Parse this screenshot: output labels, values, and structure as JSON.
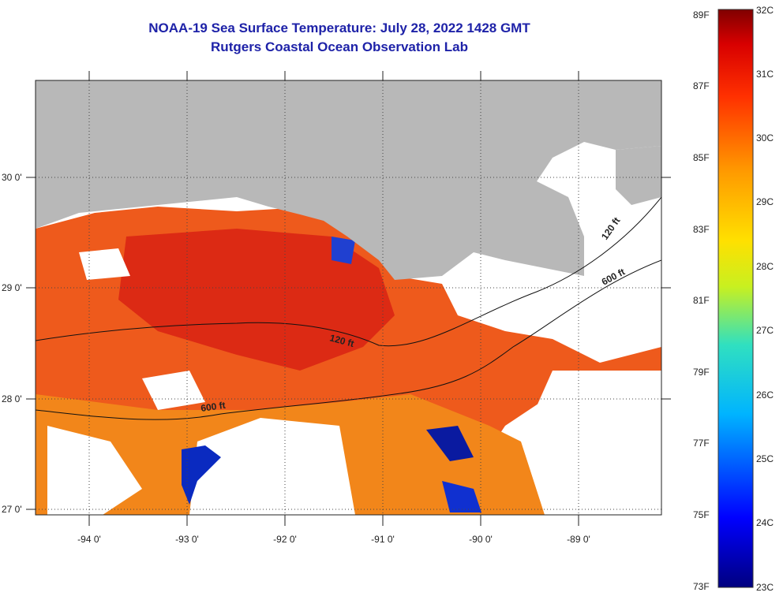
{
  "header": {
    "title": "NOAA-19 Sea Surface Temperature:  July 28, 2022 1428 GMT",
    "subtitle": "Rutgers Coastal Ocean Observation Lab"
  },
  "map": {
    "lon_labels": [
      "-94 0'",
      "-93 0'",
      "-92 0'",
      "-91 0'",
      "-90 0'",
      "-89 0'"
    ],
    "lat_labels": [
      "30 0'",
      "29 0'",
      "28 0'",
      "27 0'"
    ],
    "contour_labels": [
      "120 ft",
      "600 ft",
      "120 ft",
      "600 ft"
    ]
  },
  "colorbar": {
    "fahrenheit_labels": [
      "89F",
      "87F",
      "85F",
      "83F",
      "81F",
      "79F",
      "77F",
      "75F",
      "73F"
    ],
    "celsius_labels": [
      "32C",
      "31C",
      "30C",
      "29C",
      "28C",
      "27C",
      "26C",
      "25C",
      "24C",
      "23C"
    ]
  },
  "colors": {
    "title": "#1e22a8",
    "land": "#b8b8b8",
    "warm": "#e8401a",
    "hot": "#d81a10",
    "mid": "#f28a1a",
    "cold": "#0a1aa0",
    "cloud": "#ffffff"
  }
}
